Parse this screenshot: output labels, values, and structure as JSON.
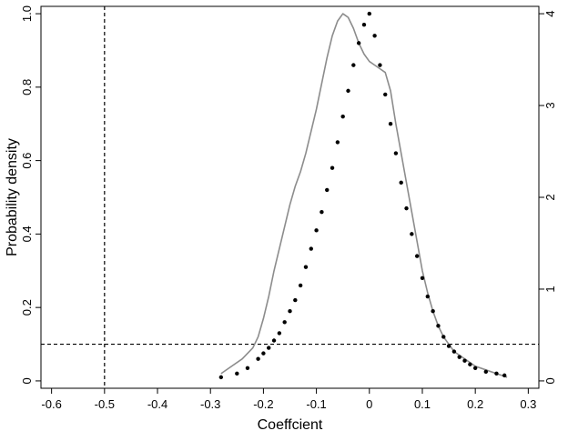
{
  "chart_data": {
    "type": "line",
    "xlabel": "Coeffcient",
    "ylabel": "Probability density",
    "xlim": [
      -0.62,
      0.32
    ],
    "ylim": [
      -0.02,
      1.02
    ],
    "y2lim": [
      -0.08,
      4.08
    ],
    "x_ticks": [
      -0.6,
      -0.5,
      -0.4,
      -0.3,
      -0.2,
      -0.1,
      0,
      0.1,
      0.2,
      0.3
    ],
    "x_tick_labels": [
      "-0.6",
      "-0.5",
      "-0.4",
      "-0.3",
      "-0.2",
      "-0.1",
      "0",
      "0.1",
      "0.2",
      "0.3"
    ],
    "y_ticks": [
      0,
      0.2,
      0.4,
      0.6,
      0.8,
      1.0
    ],
    "y_tick_labels": [
      "0",
      "0.2",
      "0.4",
      "0.6",
      "0.8",
      "1.0"
    ],
    "y2_ticks": [
      0,
      1,
      2,
      3,
      4
    ],
    "y2_tick_labels": [
      "0",
      "1",
      "2",
      "3",
      "4"
    ],
    "reference_lines": {
      "vertical_x": -0.5,
      "horizontal_y": 0.1
    },
    "grid": false,
    "series": [
      {
        "kind": "line",
        "color": "#8c8c8c",
        "x": [
          -0.28,
          -0.26,
          -0.24,
          -0.22,
          -0.21,
          -0.2,
          -0.19,
          -0.18,
          -0.17,
          -0.16,
          -0.15,
          -0.14,
          -0.13,
          -0.12,
          -0.11,
          -0.1,
          -0.09,
          -0.08,
          -0.07,
          -0.06,
          -0.05,
          -0.04,
          -0.03,
          -0.02,
          -0.01,
          0.0,
          0.01,
          0.02,
          0.03,
          0.04,
          0.05,
          0.06,
          0.07,
          0.08,
          0.09,
          0.1,
          0.11,
          0.12,
          0.13,
          0.14,
          0.15,
          0.16,
          0.17,
          0.18,
          0.2,
          0.22,
          0.24,
          0.26
        ],
        "y": [
          0.02,
          0.04,
          0.06,
          0.09,
          0.12,
          0.17,
          0.23,
          0.3,
          0.36,
          0.42,
          0.48,
          0.53,
          0.57,
          0.62,
          0.68,
          0.74,
          0.81,
          0.88,
          0.94,
          0.98,
          1.0,
          0.99,
          0.96,
          0.92,
          0.89,
          0.87,
          0.86,
          0.85,
          0.84,
          0.79,
          0.7,
          0.62,
          0.54,
          0.46,
          0.38,
          0.3,
          0.24,
          0.19,
          0.15,
          0.12,
          0.1,
          0.08,
          0.07,
          0.06,
          0.04,
          0.03,
          0.02,
          0.01
        ]
      },
      {
        "kind": "scatter",
        "color": "#000000",
        "x": [
          -0.28,
          -0.25,
          -0.23,
          -0.21,
          -0.2,
          -0.19,
          -0.18,
          -0.17,
          -0.16,
          -0.15,
          -0.14,
          -0.13,
          -0.12,
          -0.11,
          -0.1,
          -0.09,
          -0.08,
          -0.07,
          -0.06,
          -0.05,
          -0.04,
          -0.03,
          -0.02,
          -0.01,
          0.0,
          0.01,
          0.02,
          0.03,
          0.04,
          0.05,
          0.06,
          0.07,
          0.08,
          0.09,
          0.1,
          0.11,
          0.12,
          0.13,
          0.14,
          0.15,
          0.16,
          0.17,
          0.18,
          0.19,
          0.2,
          0.22,
          0.24,
          0.255
        ],
        "y": [
          0.01,
          0.02,
          0.035,
          0.06,
          0.075,
          0.09,
          0.11,
          0.13,
          0.16,
          0.19,
          0.22,
          0.26,
          0.31,
          0.36,
          0.41,
          0.46,
          0.52,
          0.58,
          0.65,
          0.72,
          0.79,
          0.86,
          0.92,
          0.97,
          1.0,
          0.94,
          0.86,
          0.78,
          0.7,
          0.62,
          0.54,
          0.47,
          0.4,
          0.34,
          0.28,
          0.23,
          0.19,
          0.15,
          0.12,
          0.095,
          0.08,
          0.065,
          0.055,
          0.045,
          0.035,
          0.025,
          0.02,
          0.015
        ]
      }
    ]
  }
}
